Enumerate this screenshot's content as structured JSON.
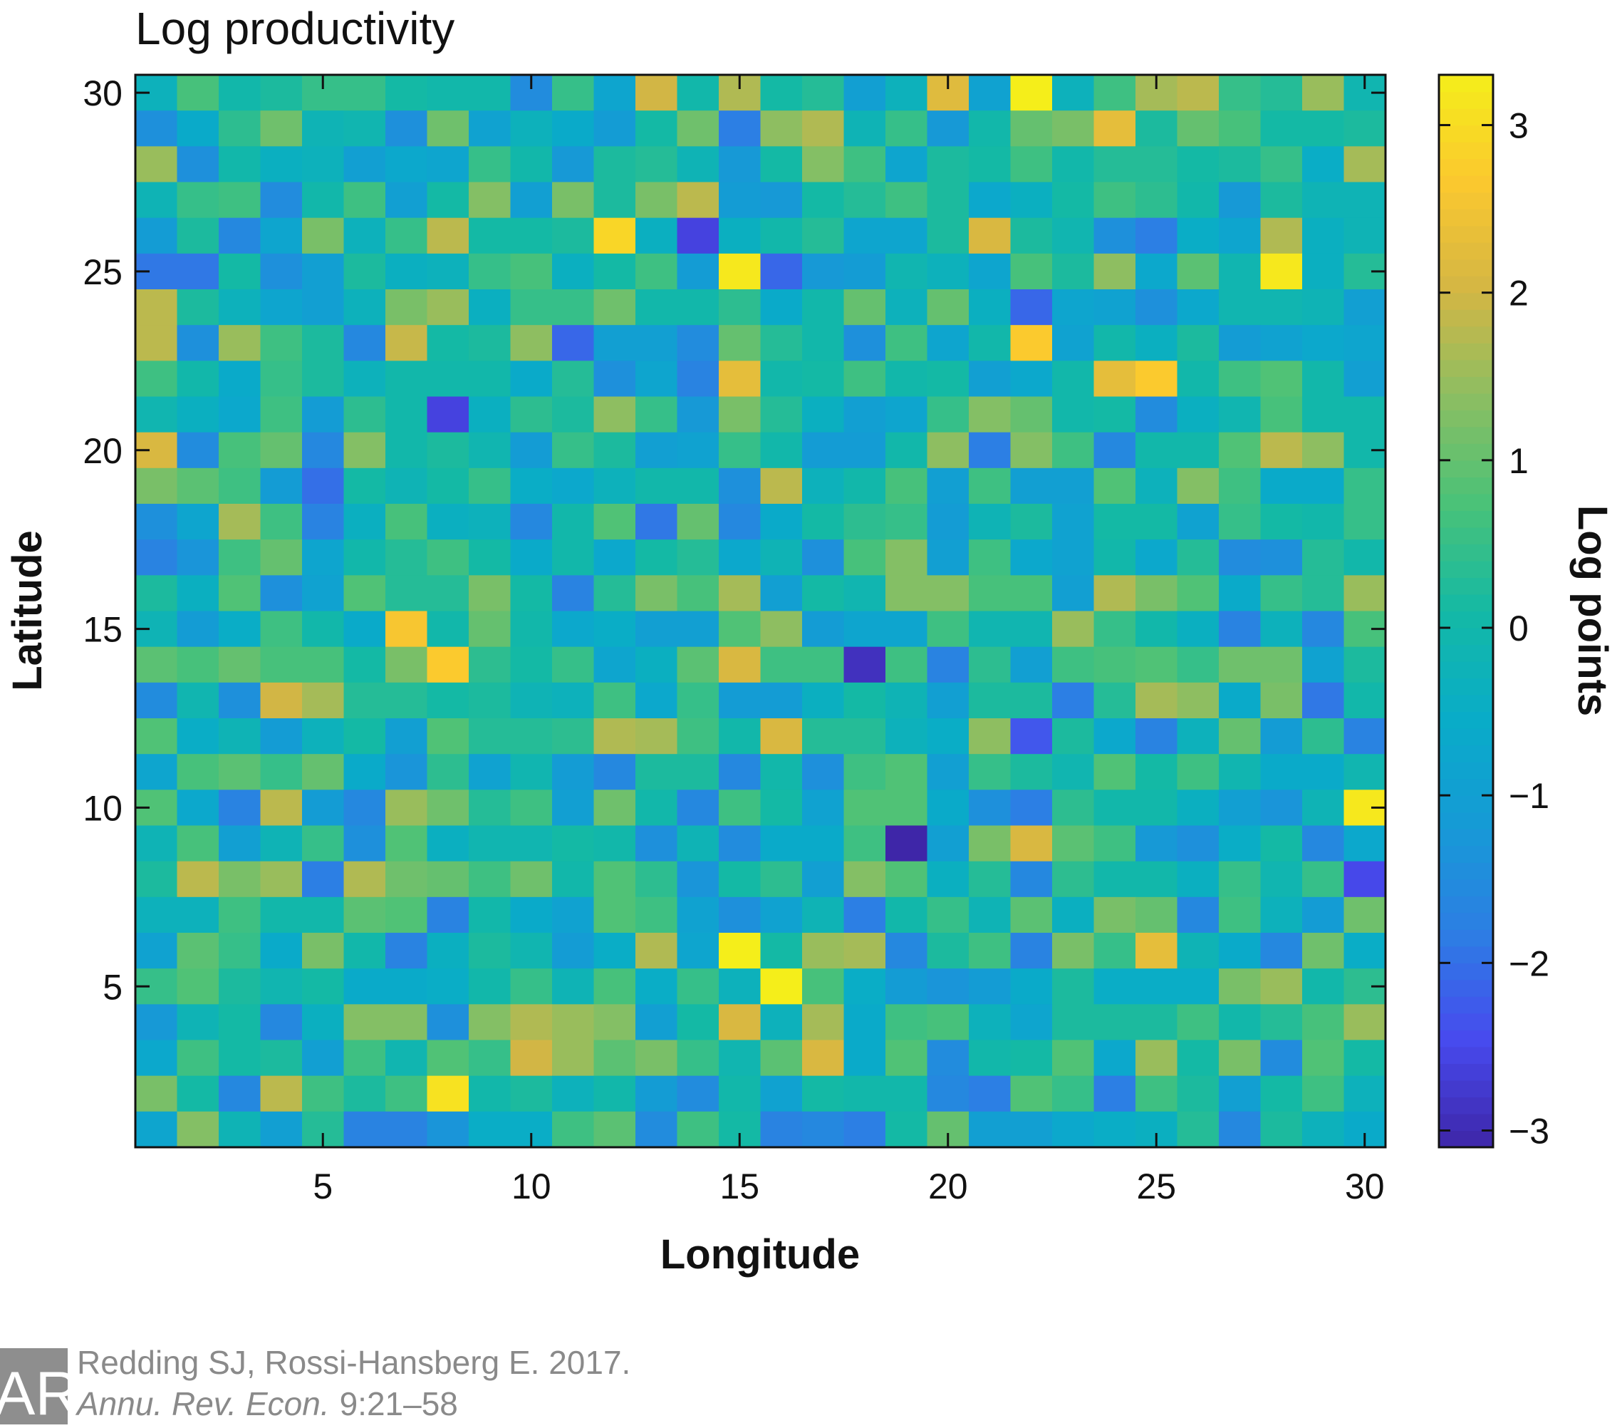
{
  "chart_data": {
    "type": "heatmap",
    "title": "Log productivity",
    "xlabel": "Longitude",
    "ylabel": "Latitude",
    "colorbar_label": "Log points",
    "xlim": [
      0.5,
      30.5
    ],
    "ylim": [
      0.5,
      30.5
    ],
    "x_ticks": [
      5,
      10,
      15,
      20,
      25,
      30
    ],
    "y_ticks": [
      5,
      10,
      15,
      20,
      25,
      30
    ],
    "colorbar_range": [
      -3.1,
      3.3
    ],
    "colorbar_ticks": [
      -3,
      -2,
      -1,
      0,
      1,
      2,
      3
    ],
    "colormap": "parula",
    "grid": false,
    "values_rows_top_to_bottom": [
      [
        -0.3,
        0.7,
        0,
        0.2,
        0.5,
        0.5,
        0.1,
        0,
        0,
        -1.5,
        0.5,
        -0.8,
        2,
        0,
        1.7,
        0.1,
        0.3,
        -1,
        -0.3,
        2.2,
        -0.9,
        3.3,
        -0.3,
        0.6,
        1.6,
        1.8,
        0.5,
        0.3,
        1.5,
        -0.1
      ],
      [
        -1.4,
        -0.6,
        0.4,
        1.1,
        -0.2,
        -0.1,
        -1.4,
        1.1,
        -0.9,
        -0.3,
        -0.6,
        -1.1,
        0.1,
        1.1,
        -1.8,
        1.4,
        1.7,
        -0.2,
        0.5,
        -1.2,
        0,
        1,
        1.2,
        2.3,
        0.2,
        1,
        0.7,
        0.1,
        0.1,
        0.2
      ],
      [
        1.5,
        -1.4,
        0,
        -0.4,
        -0.3,
        -1,
        -0.7,
        -0.8,
        0.5,
        0,
        -1.2,
        0.2,
        0.3,
        -0.2,
        -1.2,
        0.1,
        1.3,
        0.6,
        -0.8,
        0.2,
        0.1,
        0.6,
        0,
        0.3,
        0.3,
        0.1,
        0.2,
        0.5,
        -0.5,
        1.6
      ],
      [
        -0.2,
        0.5,
        0.6,
        -1.5,
        0,
        0.6,
        -1,
        0.1,
        1.3,
        -1,
        1.2,
        0.2,
        1.2,
        1.8,
        -1.1,
        -1.2,
        0.1,
        0.3,
        0.6,
        0.2,
        -0.7,
        -0.4,
        0.1,
        0.6,
        0.4,
        0,
        -1.2,
        0.2,
        -0.2,
        -0.2
      ],
      [
        -1.1,
        0.2,
        -1.6,
        -0.8,
        1.2,
        -0.3,
        0.5,
        1.8,
        0.1,
        0.1,
        0.2,
        2.9,
        -0.4,
        -2.6,
        -0.4,
        0,
        0.3,
        -0.8,
        -0.8,
        0.2,
        2.1,
        0.2,
        -0.1,
        -1.4,
        -1.8,
        -0.5,
        -0.8,
        1.7,
        -0.4,
        -0.2
      ],
      [
        -1.9,
        -1.9,
        0.1,
        -1.4,
        -1,
        0.2,
        -0.4,
        -0.3,
        0.5,
        0.7,
        -0.4,
        0.1,
        0.6,
        -1.1,
        3.2,
        -2.1,
        -1.2,
        -1.1,
        -0.1,
        -0.3,
        -0.8,
        0.7,
        0.2,
        1.4,
        -0.7,
        0.9,
        -0.1,
        3.2,
        -0.4,
        0.3
      ],
      [
        1.8,
        0.2,
        -0.3,
        -0.8,
        -1,
        -0.3,
        1.2,
        1.5,
        -0.4,
        0.5,
        0.5,
        1.1,
        0,
        0,
        0.4,
        -0.6,
        0,
        1,
        -0.3,
        1,
        -0.4,
        -2.1,
        -0.8,
        -0.9,
        -1.4,
        -0.7,
        -0.1,
        -0.1,
        -0.2,
        -1
      ],
      [
        1.8,
        -1.4,
        1.5,
        0.6,
        0.2,
        -1.6,
        1.9,
        0.1,
        0.2,
        1.4,
        -2.1,
        -1,
        -1,
        -1.5,
        1,
        0.3,
        0,
        -1.4,
        0.6,
        -0.8,
        0,
        2.7,
        -0.9,
        0,
        -0.4,
        0.2,
        -1.1,
        -0.9,
        -0.7,
        -0.8
      ],
      [
        0.6,
        0,
        -0.6,
        0.5,
        0.2,
        -0.3,
        0,
        0,
        0,
        -0.6,
        0.3,
        -1.4,
        -0.8,
        -1.7,
        2.3,
        0,
        0.1,
        0.6,
        0,
        0.1,
        -1,
        -0.7,
        0,
        2.3,
        2.7,
        0,
        0.6,
        0.8,
        0,
        -1
      ],
      [
        -0.1,
        -0.4,
        -0.7,
        0.6,
        -1.1,
        0.4,
        0,
        -2.6,
        -0.4,
        0.4,
        0.2,
        1.4,
        0.5,
        -1.2,
        1.2,
        0.3,
        -0.4,
        -1,
        -0.8,
        0.5,
        1.3,
        1,
        0,
        0.1,
        -1.5,
        -0.4,
        -0.1,
        0.7,
        0,
        0
      ],
      [
        2.1,
        -1.5,
        0.7,
        1,
        -1.6,
        1.3,
        0,
        0.2,
        -0.1,
        -1.1,
        0.5,
        0.2,
        -1,
        -0.9,
        0.5,
        0,
        -1.1,
        -1.1,
        0,
        1.4,
        -1.8,
        1.3,
        0.6,
        -1.6,
        0,
        0,
        0.8,
        1.8,
        1.4,
        0
      ],
      [
        1.2,
        0.9,
        0.6,
        -1.1,
        -2,
        0.1,
        -0.2,
        0.1,
        0.5,
        -0.5,
        -0.7,
        -0.3,
        0,
        0,
        -1.4,
        1.8,
        -0.3,
        0,
        0.7,
        -1,
        0.6,
        -1,
        -1,
        0.8,
        -0.3,
        1.3,
        0.6,
        -0.6,
        -0.6,
        0.5
      ],
      [
        -1.4,
        -0.8,
        1.6,
        0.6,
        -1.7,
        -0.4,
        0.7,
        -0.4,
        -0.3,
        -1.6,
        0,
        0.8,
        -1.9,
        1,
        -1.6,
        -0.6,
        0.1,
        0.4,
        0.5,
        -1.1,
        -0.2,
        0.2,
        -0.9,
        0.1,
        0.1,
        -0.9,
        0.5,
        0.1,
        0,
        0.5
      ],
      [
        -1.7,
        -1.3,
        0.6,
        1,
        -0.8,
        0,
        0.3,
        0.6,
        0.1,
        -0.6,
        0,
        -0.7,
        0.1,
        0.3,
        -0.7,
        -0.2,
        -1.4,
        0.7,
        1.3,
        -1,
        0.6,
        -0.7,
        -0.9,
        0,
        -0.7,
        0.3,
        -1.5,
        -1.4,
        0.3,
        0
      ],
      [
        0.2,
        -0.4,
        0.8,
        -1.4,
        -0.9,
        0.8,
        0.3,
        0.3,
        1.2,
        0.1,
        -1.7,
        0.3,
        1.2,
        0.7,
        1.6,
        -1,
        0.1,
        -0.1,
        1.3,
        1.3,
        0.7,
        0.7,
        -1,
        1.7,
        1.2,
        0.8,
        -0.6,
        0.5,
        0.3,
        1.5
      ],
      [
        -0.2,
        -1.1,
        -0.5,
        0.6,
        0,
        -0.6,
        2.6,
        0,
        1,
        0,
        -0.7,
        -0.5,
        -1,
        -1,
        0.8,
        1.4,
        -1.1,
        -0.8,
        -0.8,
        0.6,
        -0.1,
        -0.1,
        1.5,
        0.5,
        0,
        -0.4,
        -1.7,
        -0.3,
        -1.6,
        0.7
      ],
      [
        0.9,
        0.7,
        1,
        0.7,
        0.7,
        0.1,
        1.2,
        2.7,
        0.4,
        0.1,
        0.5,
        -0.8,
        -0.4,
        0.9,
        2.1,
        0.6,
        0.6,
        -2.9,
        0.6,
        -1.7,
        0.4,
        -1,
        0.6,
        0.7,
        0.8,
        0.5,
        1.1,
        1.1,
        -0.9,
        0.2
      ],
      [
        -1.5,
        -0.1,
        -1.4,
        2,
        1.6,
        0.3,
        0.3,
        0.1,
        0.2,
        -0.2,
        -0.3,
        0.6,
        -0.7,
        0.5,
        -1.1,
        -1.1,
        -0.4,
        0.1,
        -0.2,
        -1,
        0.2,
        0.2,
        -1.8,
        0.3,
        1.6,
        1.4,
        -0.6,
        1.2,
        -1.9,
        0
      ],
      [
        0.8,
        -0.5,
        -0.2,
        -1.1,
        -0.3,
        0.1,
        -1,
        0.8,
        0.3,
        0.3,
        0.4,
        1.7,
        1.6,
        0.6,
        0,
        2.1,
        0.3,
        0.3,
        -0.3,
        -0.5,
        1.4,
        -2.3,
        0.2,
        -0.7,
        -1.7,
        -0.3,
        1,
        -1.1,
        0.4,
        -1.7
      ],
      [
        -0.8,
        0.7,
        0.9,
        0.5,
        1,
        -0.6,
        -1.3,
        0.4,
        -0.9,
        -0.1,
        -1.1,
        -1.6,
        0.2,
        0.2,
        -1.6,
        0,
        -1.4,
        0.6,
        0.8,
        -1,
        0.5,
        0.2,
        -0.1,
        0.8,
        0.1,
        0.6,
        -0.1,
        -0.6,
        -0.6,
        -0.1
      ],
      [
        0.8,
        -0.7,
        -1.7,
        1.8,
        -1.1,
        -1.6,
        1.5,
        1.1,
        0.3,
        0.6,
        -1,
        1.1,
        0,
        -1.6,
        0.6,
        0.1,
        -0.9,
        0.8,
        0.8,
        -0.6,
        -1.4,
        -1.8,
        0.4,
        0,
        0,
        -0.4,
        -1,
        -1.3,
        -0.2,
        3.2
      ],
      [
        -0.2,
        0.7,
        -1,
        -0.2,
        0.5,
        -1.4,
        0.8,
        -0.4,
        -0.1,
        -0.1,
        0.1,
        0,
        -1.4,
        -0.2,
        -1.5,
        -0.6,
        -0.6,
        0.6,
        -3.1,
        -1,
        1.2,
        2.1,
        0.9,
        0.6,
        -1.2,
        -1.4,
        -0.5,
        0.1,
        -1.6,
        -0.7
      ],
      [
        0.2,
        1.8,
        1.2,
        1.5,
        -1.8,
        1.7,
        1.1,
        1,
        0.6,
        1.1,
        0,
        0.8,
        0.4,
        -1.3,
        0.1,
        0.4,
        -1,
        1.3,
        0.8,
        -0.4,
        0.3,
        -1.6,
        0.4,
        0,
        0,
        -0.4,
        0.5,
        -0.1,
        0.5,
        -2.5
      ],
      [
        -0.3,
        -0.3,
        0.6,
        0,
        0,
        0.9,
        0.8,
        -1.7,
        0,
        -0.6,
        -0.9,
        0.8,
        0.6,
        -0.9,
        -1.4,
        -0.9,
        -0.2,
        -1.8,
        0,
        0.5,
        -0.2,
        0.9,
        -0.4,
        1.2,
        1,
        -1.6,
        0.6,
        -0.3,
        -1.1,
        1.1
      ],
      [
        -0.9,
        0.9,
        0.5,
        -0.6,
        1.2,
        0,
        -1.7,
        -0.4,
        0.2,
        -0.1,
        -1.1,
        -0.5,
        1.7,
        -0.8,
        3.3,
        0.1,
        1.5,
        1.6,
        -1.6,
        0.2,
        0.6,
        -1.7,
        1.2,
        0.5,
        2.3,
        -0.2,
        -0.6,
        -1.6,
        1.1,
        -0.5
      ],
      [
        0.5,
        0.8,
        0.2,
        -0.1,
        0.1,
        -0.6,
        -0.6,
        -0.5,
        0,
        0.5,
        -0.2,
        0.7,
        -0.5,
        0.5,
        -0.3,
        3.3,
        0.7,
        -0.5,
        -1.1,
        -1.3,
        -1.1,
        -0.6,
        0.2,
        -0.5,
        -0.5,
        -0.5,
        1.2,
        1.5,
        0,
        0.4
      ],
      [
        -1.2,
        -0.2,
        0.1,
        -1.6,
        -0.4,
        1.3,
        1.3,
        -1.4,
        1.3,
        1.7,
        1.5,
        1.3,
        -1,
        0.1,
        2.1,
        -0.3,
        1.6,
        -0.6,
        0.6,
        0.7,
        -0.3,
        -0.8,
        0.2,
        0.2,
        0.2,
        0.6,
        0,
        0.3,
        0.7,
        1.5
      ],
      [
        -0.7,
        0.6,
        0.1,
        0.2,
        -1,
        0.6,
        -0.1,
        0.8,
        0.5,
        2,
        1.5,
        0.9,
        1.2,
        0.5,
        -0.1,
        0.9,
        2.1,
        -0.6,
        0.8,
        -1.5,
        0,
        0.1,
        0.8,
        -0.7,
        1.5,
        0.1,
        1.2,
        -1.5,
        0.8,
        0.1
      ],
      [
        1.2,
        0.1,
        -1.6,
        1.8,
        0.6,
        0.2,
        0.6,
        3.1,
        0,
        0.2,
        -0.3,
        0,
        -1.1,
        -1.5,
        0,
        -0.9,
        0.1,
        0,
        0,
        -1.6,
        -1.8,
        0.8,
        0.5,
        -1.8,
        0.6,
        0.2,
        -1,
        0.1,
        0.6,
        -0.3
      ],
      [
        -0.8,
        1.3,
        -0.2,
        -1,
        0.3,
        -1.7,
        -1.7,
        -1.3,
        -0.5,
        -0.5,
        0.6,
        0.9,
        -1.5,
        0.6,
        0.1,
        -1.7,
        -1.6,
        -1.8,
        0.1,
        1,
        -1,
        -1,
        -0.7,
        -0.5,
        -0.4,
        0.3,
        -1.6,
        0.2,
        -0.3,
        -0.6
      ]
    ]
  },
  "citation": {
    "logo_letters": "AR",
    "line1": "Redding SJ, Rossi-Hansberg E. 2017.",
    "journal": "Annu. Rev. Econ.",
    "pages": "9:21–58"
  }
}
